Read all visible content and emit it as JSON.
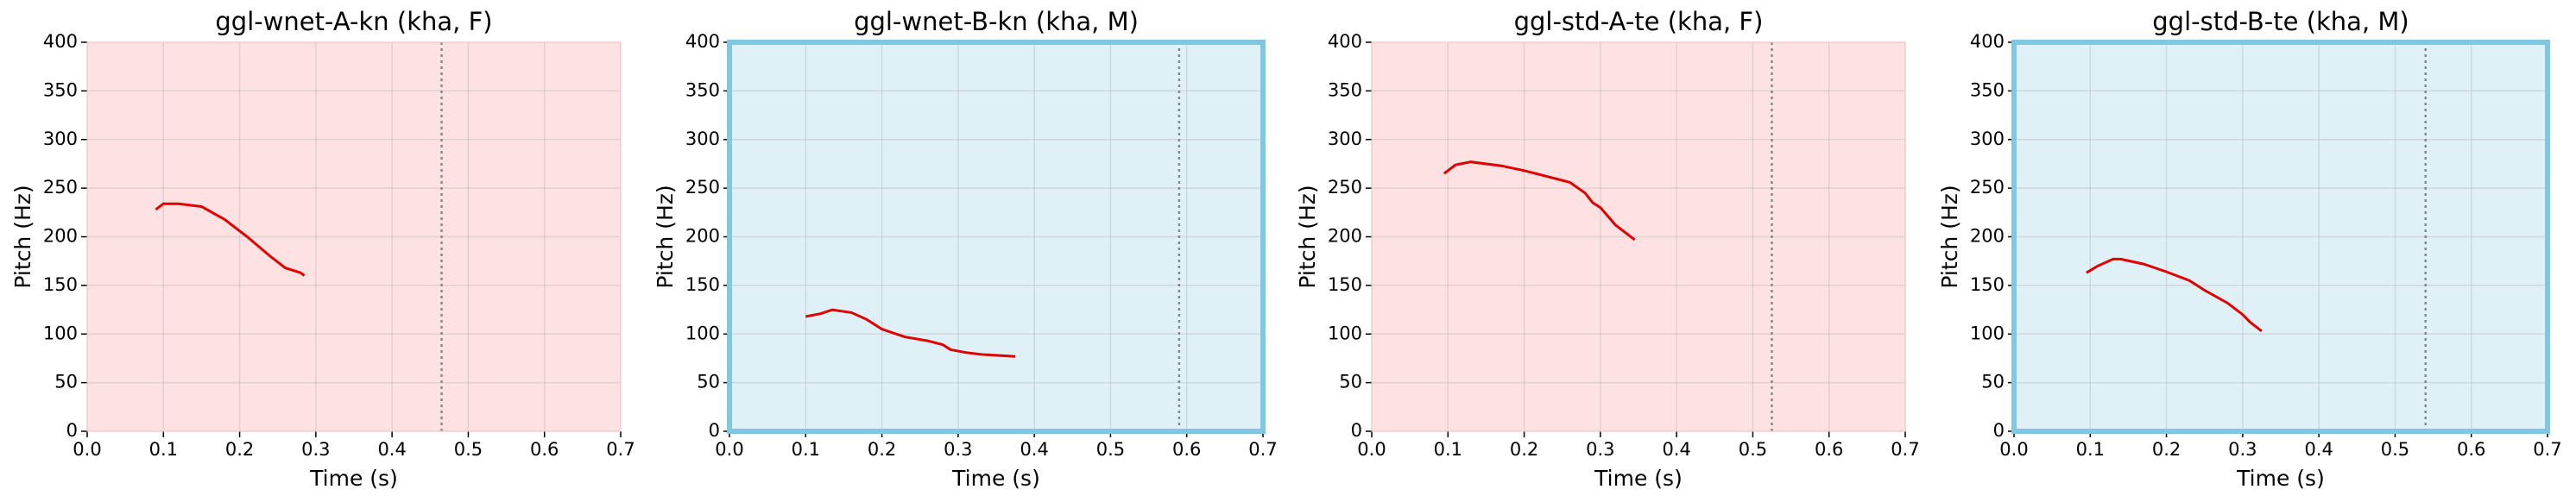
{
  "chart_data": [
    {
      "type": "line",
      "title": "ggl-wnet-A-kn (kha, F)",
      "x_label": "Time (s)",
      "y_label": "Pitch (Hz)",
      "x": [
        0.09,
        0.1,
        0.12,
        0.15,
        0.18,
        0.21,
        0.24,
        0.26,
        0.28,
        0.285
      ],
      "values": [
        228,
        234,
        234,
        231,
        218,
        200,
        180,
        168,
        163,
        160
      ],
      "color": "#e00000",
      "vline": 0.465,
      "background": "#fde2e1",
      "xlim": [
        0,
        0.7
      ],
      "xticks": [
        {
          "value": 0,
          "label": "0.0"
        },
        0.1,
        0.2,
        0.3,
        0.4,
        0.5,
        0.6,
        0.7
      ],
      "ylim": [
        0,
        400
      ],
      "yticks": [
        0,
        50,
        100,
        150,
        200,
        250,
        300,
        350,
        400
      ],
      "grid": true
    },
    {
      "type": "line",
      "title": "ggl-wnet-B-kn (kha, M)",
      "x_label": "Time (s)",
      "y_label": "Pitch (Hz)",
      "x": [
        0.1,
        0.12,
        0.135,
        0.16,
        0.18,
        0.2,
        0.23,
        0.26,
        0.28,
        0.29,
        0.31,
        0.33,
        0.375
      ],
      "values": [
        118,
        121,
        125,
        122,
        115,
        105,
        97,
        93,
        89,
        84,
        81,
        79,
        77
      ],
      "color": "#e00000",
      "vline": 0.59,
      "background": "#dff0f7",
      "frame_color": "#7ec8e3",
      "xlim": [
        0,
        0.7
      ],
      "xticks": [
        {
          "value": 0,
          "label": "0.0"
        },
        0.1,
        0.2,
        0.3,
        0.4,
        0.5,
        0.6,
        0.7
      ],
      "ylim": [
        0,
        400
      ],
      "yticks": [
        0,
        50,
        100,
        150,
        200,
        250,
        300,
        350,
        400
      ],
      "grid": true
    },
    {
      "type": "line",
      "title": "ggl-std-A-te (kha, F)",
      "x_label": "Time (s)",
      "y_label": "Pitch (Hz)",
      "x": [
        0.095,
        0.11,
        0.13,
        0.17,
        0.2,
        0.23,
        0.26,
        0.28,
        0.29,
        0.3,
        0.32,
        0.345
      ],
      "values": [
        265,
        274,
        277,
        273,
        268,
        262,
        256,
        245,
        235,
        230,
        212,
        197
      ],
      "color": "#e00000",
      "vline": 0.525,
      "background": "#fde2e1",
      "xlim": [
        0,
        0.7
      ],
      "xticks": [
        {
          "value": 0,
          "label": "0.0"
        },
        0.1,
        0.2,
        0.3,
        0.4,
        0.5,
        0.6,
        0.7
      ],
      "ylim": [
        0,
        400
      ],
      "yticks": [
        0,
        50,
        100,
        150,
        200,
        250,
        300,
        350,
        400
      ],
      "grid": true
    },
    {
      "type": "line",
      "title": "ggl-std-B-te (kha, M)",
      "x_label": "Time (s)",
      "y_label": "Pitch (Hz)",
      "x": [
        0.095,
        0.11,
        0.13,
        0.14,
        0.17,
        0.2,
        0.23,
        0.25,
        0.28,
        0.3,
        0.31,
        0.325
      ],
      "values": [
        163,
        170,
        177,
        177,
        172,
        164,
        155,
        145,
        132,
        120,
        112,
        103
      ],
      "color": "#e00000",
      "vline": 0.54,
      "background": "#dff0f7",
      "frame_color": "#7ec8e3",
      "xlim": [
        0,
        0.7
      ],
      "xticks": [
        {
          "value": 0,
          "label": "0.0"
        },
        0.1,
        0.2,
        0.3,
        0.4,
        0.5,
        0.6,
        0.7
      ],
      "ylim": [
        0,
        400
      ],
      "yticks": [
        0,
        50,
        100,
        150,
        200,
        250,
        300,
        350,
        400
      ],
      "grid": true
    }
  ]
}
